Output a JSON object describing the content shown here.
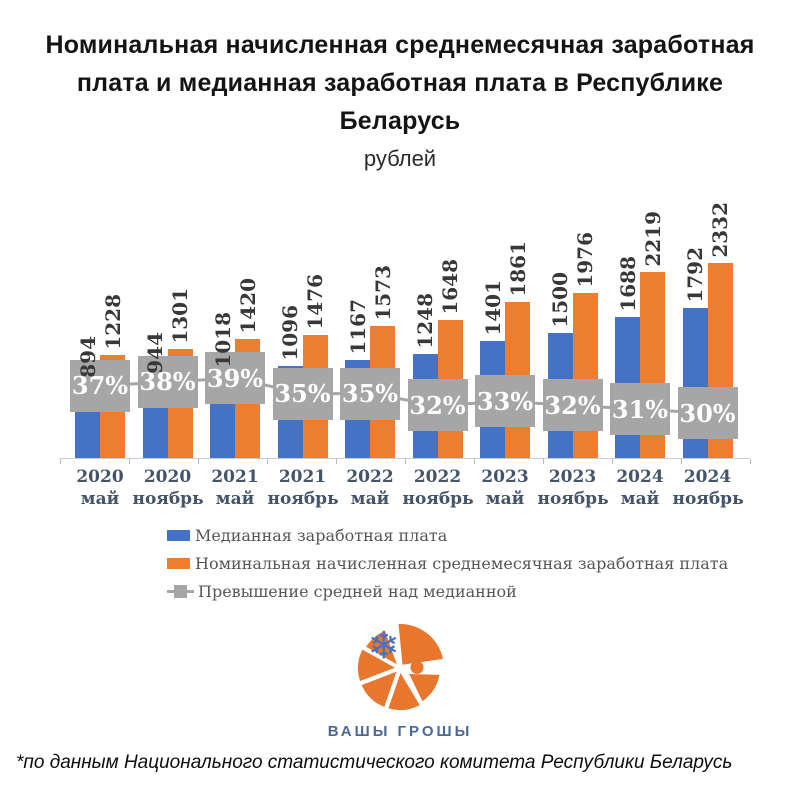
{
  "title": "Номинальная начисленная среднемесячная заработная плата и медианная заработная плата в Республике Беларусь",
  "subtitle": "рублей",
  "chart_data": {
    "type": "bar",
    "title": "Номинальная начисленная среднемесячная заработная плата и медианная заработная плата в Республике Беларусь",
    "units_label": "рублей",
    "categories": [
      {
        "year": "2020",
        "month": "май"
      },
      {
        "year": "2020",
        "month": "ноябрь"
      },
      {
        "year": "2021",
        "month": "май"
      },
      {
        "year": "2021",
        "month": "ноябрь"
      },
      {
        "year": "2022",
        "month": "май"
      },
      {
        "year": "2022",
        "month": "ноябрь"
      },
      {
        "year": "2023",
        "month": "май"
      },
      {
        "year": "2023",
        "month": "ноябрь"
      },
      {
        "year": "2024",
        "month": "май"
      },
      {
        "year": "2024",
        "month": "ноябрь"
      }
    ],
    "series": [
      {
        "name": "Медианная заработная плата",
        "type": "bar",
        "marker": "rect",
        "color": "#4472c4",
        "values": [
          894,
          944,
          1018,
          1096,
          1167,
          1248,
          1401,
          1500,
          1688,
          1792
        ]
      },
      {
        "name": "Номинальная начисленная среднемесячная заработная плата",
        "type": "bar",
        "marker": "rect",
        "color": "#ed7d31",
        "values": [
          1228,
          1301,
          1420,
          1476,
          1573,
          1648,
          1861,
          1976,
          2219,
          2332
        ]
      },
      {
        "name": "Превышение средней над медианной",
        "type": "line",
        "marker": "line-square",
        "color": "#a6a6a6",
        "values_percent": [
          37,
          38,
          39,
          35,
          35,
          32,
          33,
          32,
          31,
          30
        ],
        "label_suffix": "%",
        "label_text_color": "#ffffff"
      }
    ],
    "value_labels_rotation": 90,
    "grid": false,
    "y_axis_visible": false,
    "legend_position": "bottom-left",
    "x_label_color": "#44546a",
    "value_label_color": "#383838"
  },
  "logo": {
    "text": "ВАШЫ ГРОШЫ",
    "accent_color": "#e8762c",
    "text_color": "#4a6898",
    "snowflake_color": "#4472c4"
  },
  "footnote": "*по данным Национального статистического комитета Республики Беларусь"
}
